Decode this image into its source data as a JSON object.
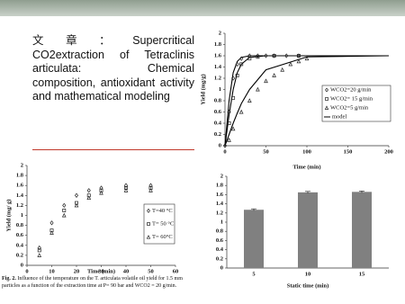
{
  "slide": {
    "text": "文章：Supercritical CO2extraction of Tetraclinis articulata: Chemical composition, antioxidant activity and mathematical modeling",
    "caption_label": "Fig. 2.",
    "caption": "Influence of the temperature on the T. articulata volatile oil yield for 1.5 mm particles as a function of the extraction time at P= 90 bar and WCO2 = 20 g/min."
  },
  "chart_data": [
    {
      "type": "scatter",
      "x_label": "Time (min)",
      "y_label": "Yield (mg/g)",
      "xlim": [
        0,
        200
      ],
      "xticks": [
        0,
        50,
        100,
        150,
        200
      ],
      "ylim": [
        0,
        2
      ],
      "yticks": [
        0,
        0.2,
        0.4,
        0.6,
        0.8,
        1,
        1.2,
        1.4,
        1.6,
        1.8,
        2
      ],
      "series": [
        {
          "name": "WCO2=20 g/min",
          "marker": "diamond",
          "color": "#222",
          "x": [
            0,
            5,
            10,
            15,
            20,
            30,
            40,
            50,
            60,
            75,
            90
          ],
          "values": [
            0,
            0.6,
            1.2,
            1.45,
            1.55,
            1.6,
            1.6,
            1.6,
            1.6,
            1.6,
            1.6
          ]
        },
        {
          "name": "WCO2= 15 g/min",
          "marker": "square",
          "color": "#222",
          "x": [
            5,
            10,
            15,
            20,
            30,
            40,
            60,
            90
          ],
          "values": [
            0.4,
            0.85,
            1.25,
            1.45,
            1.55,
            1.58,
            1.6,
            1.6
          ]
        },
        {
          "name": "WCO2=5 g/min",
          "marker": "triangle",
          "color": "#222",
          "x": [
            5,
            10,
            20,
            30,
            40,
            50,
            60,
            70,
            80,
            90,
            100
          ],
          "values": [
            0.1,
            0.3,
            0.6,
            0.8,
            1,
            1.15,
            1.25,
            1.35,
            1.45,
            1.5,
            1.55
          ]
        }
      ],
      "model": {
        "name": "model",
        "color": "#000",
        "x": [
          0,
          5,
          10,
          15,
          20,
          30,
          50,
          100,
          200
        ],
        "curves": [
          [
            0,
            0.8,
            1.3,
            1.5,
            1.57,
            1.6,
            1.6,
            1.6,
            1.6
          ],
          [
            0,
            0.55,
            1,
            1.3,
            1.45,
            1.57,
            1.6,
            1.6,
            1.6
          ],
          [
            0,
            0.2,
            0.4,
            0.58,
            0.75,
            1,
            1.35,
            1.58,
            1.6
          ]
        ]
      }
    },
    {
      "type": "scatter",
      "x_label": "Time (min)",
      "y_label": "Yield (mg/ g)",
      "xlim": [
        0,
        60
      ],
      "xticks": [
        0,
        10,
        20,
        30,
        40,
        50,
        60
      ],
      "ylim": [
        0,
        2
      ],
      "yticks": [
        0,
        0.2,
        0.4,
        0.6,
        0.8,
        1,
        1.2,
        1.4,
        1.6,
        1.8,
        2
      ],
      "series": [
        {
          "name": "T=40 °C",
          "marker": "diamond",
          "color": "#222",
          "x": [
            5,
            10,
            15,
            20,
            25,
            30,
            40,
            50
          ],
          "values": [
            0.35,
            0.85,
            1.2,
            1.4,
            1.5,
            1.55,
            1.6,
            1.6
          ]
        },
        {
          "name": "T= 50 °C",
          "marker": "square",
          "color": "#222",
          "x": [
            5,
            10,
            15,
            20,
            25,
            30,
            40,
            50
          ],
          "values": [
            0.3,
            0.7,
            1.1,
            1.25,
            1.4,
            1.5,
            1.55,
            1.55
          ]
        },
        {
          "name": "T= 60°C",
          "marker": "triangle",
          "color": "#222",
          "x": [
            5,
            10,
            15,
            20,
            25,
            30,
            40,
            50
          ],
          "values": [
            0.2,
            0.65,
            1,
            1.2,
            1.35,
            1.45,
            1.5,
            1.5
          ]
        }
      ]
    },
    {
      "type": "bar",
      "x_label": "Static time (min)",
      "color": "#808080",
      "categories": [
        "5",
        "10",
        "15"
      ],
      "values": [
        1.27,
        1.65,
        1.66
      ],
      "errors": [
        0.02,
        0.02,
        0.02
      ],
      "ylim": [
        0,
        2
      ],
      "yticks": [
        0,
        0.2,
        0.4,
        0.6,
        0.8,
        1,
        1.2,
        1.4,
        1.6,
        1.8,
        2
      ]
    }
  ]
}
